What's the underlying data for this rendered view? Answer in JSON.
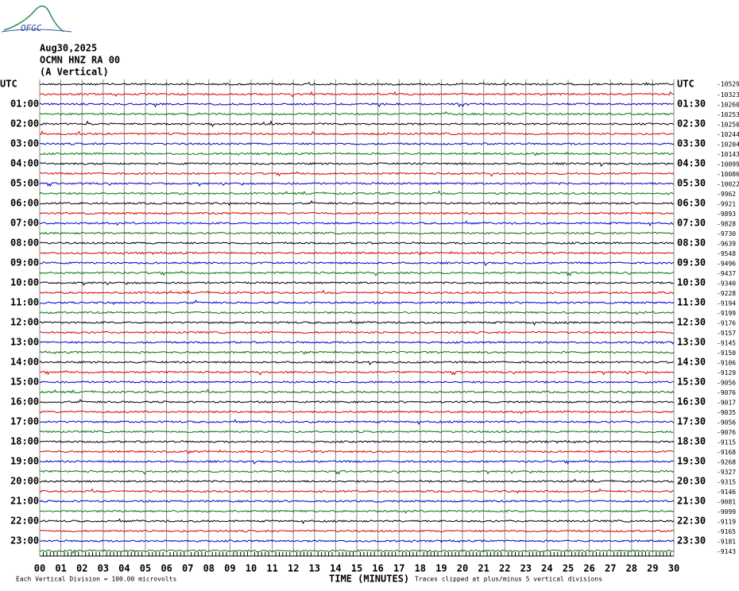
{
  "header": {
    "logo": "OFGC",
    "date": "Aug30,2025",
    "station": "OCMN HNZ RA 00",
    "component": "(A Vertical)"
  },
  "left_labels": [
    "UTC",
    "01:00",
    "02:00",
    "03:00",
    "04:00",
    "05:00",
    "06:00",
    "07:00",
    "08:00",
    "09:00",
    "10:00",
    "11:00",
    "12:00",
    "13:00",
    "14:00",
    "15:00",
    "16:00",
    "17:00",
    "18:00",
    "19:00",
    "20:00",
    "21:00",
    "22:00",
    "23:00"
  ],
  "right_labels": [
    "UTC",
    "01:30",
    "02:30",
    "03:30",
    "04:30",
    "05:30",
    "06:30",
    "07:30",
    "08:30",
    "09:30",
    "10:30",
    "11:30",
    "12:30",
    "13:30",
    "14:30",
    "15:30",
    "16:30",
    "17:30",
    "18:30",
    "19:30",
    "20:30",
    "21:30",
    "22:30",
    "23:30"
  ],
  "offsets": [
    "-10529",
    "-10323",
    "-10260",
    "-10253",
    "-10250",
    "-10244",
    "-10204",
    "-10143",
    "-10099",
    "-10086",
    "-10022",
    "-9962",
    "-9921",
    "-9893",
    "-9828",
    "-9730",
    "-9639",
    "-9548",
    "-9496",
    "-9437",
    "-9340",
    "-9228",
    "-9194",
    "-9199",
    "-9176",
    "-9157",
    "-9145",
    "-9150",
    "-9106",
    "-9129",
    "-9056",
    "-9076",
    "-9017",
    "-9035",
    "-9056",
    "-9076",
    "-9115",
    "-9168",
    "-9268",
    "-9327",
    "-9315",
    "-9146",
    "-9081",
    "-9099",
    "-9119",
    "-9165",
    "-9181",
    "-9143"
  ],
  "x_labels": [
    "00",
    "01",
    "02",
    "03",
    "04",
    "05",
    "06",
    "07",
    "08",
    "09",
    "10",
    "11",
    "12",
    "13",
    "14",
    "15",
    "16",
    "17",
    "18",
    "19",
    "20",
    "21",
    "22",
    "23",
    "24",
    "25",
    "26",
    "27",
    "28",
    "29",
    "30"
  ],
  "footer": {
    "scale": "Each Vertical Division =  100.00 microvolts",
    "axis_title": "TIME (MINUTES)",
    "clip": "Traces clipped at plus/minus 5 vertical divisions"
  }
}
